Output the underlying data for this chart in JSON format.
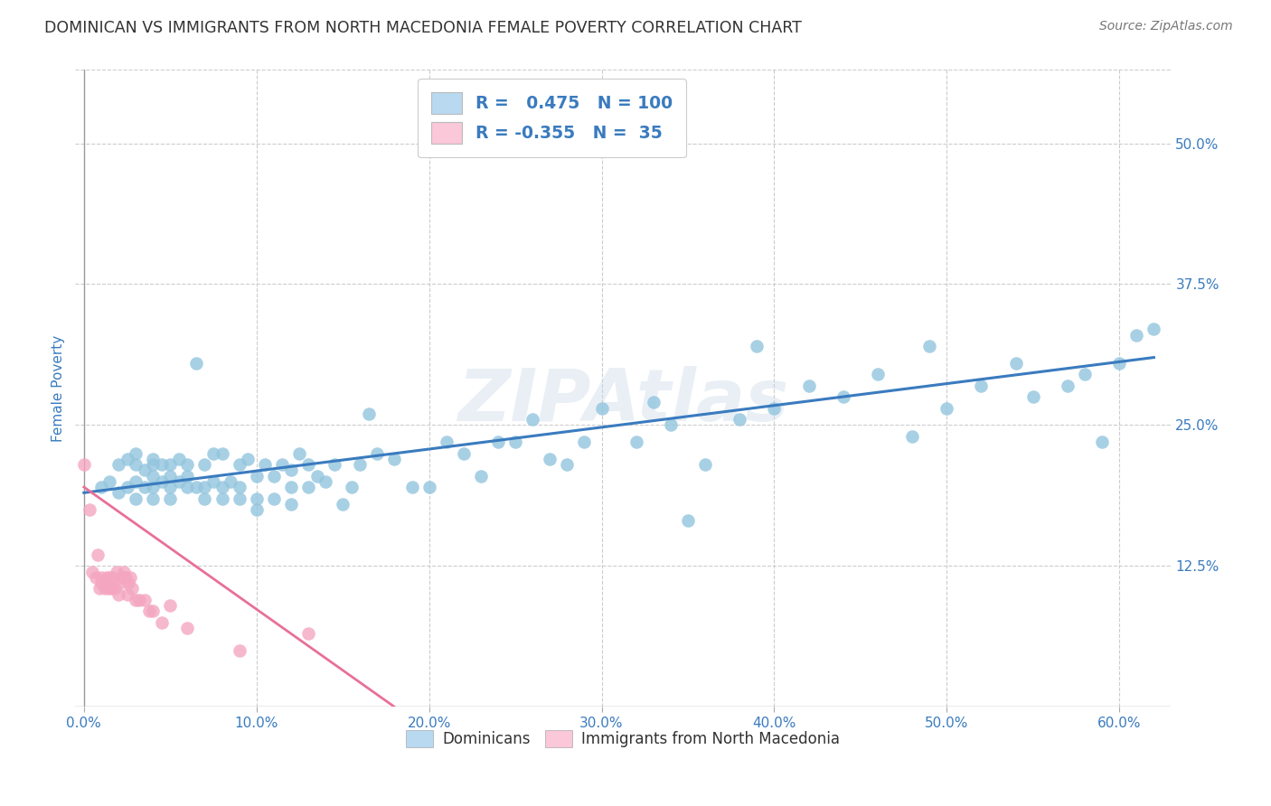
{
  "title": "DOMINICAN VS IMMIGRANTS FROM NORTH MACEDONIA FEMALE POVERTY CORRELATION CHART",
  "source": "Source: ZipAtlas.com",
  "xlabel_tick_vals": [
    0.0,
    0.1,
    0.2,
    0.3,
    0.4,
    0.5,
    0.6
  ],
  "ylabel": "Female Poverty",
  "ylabel_ticks_right": [
    "50.0%",
    "37.5%",
    "25.0%",
    "12.5%"
  ],
  "ylabel_tick_vals": [
    0.5,
    0.375,
    0.25,
    0.125
  ],
  "ylim": [
    0.0,
    0.565
  ],
  "xlim": [
    -0.005,
    0.63
  ],
  "blue_R": 0.475,
  "blue_N": 100,
  "pink_R": -0.355,
  "pink_N": 35,
  "blue_color": "#92c5de",
  "pink_color": "#f4a6c0",
  "blue_line_color": "#3a7bbf",
  "pink_line_color": "#e87098",
  "legend_blue_face": "#b8d9f0",
  "legend_pink_face": "#fac8d8",
  "watermark": "ZIPAtlas",
  "legend_text_color": "#3a7bbf",
  "blue_scatter_x": [
    0.01,
    0.015,
    0.02,
    0.02,
    0.025,
    0.025,
    0.03,
    0.03,
    0.03,
    0.03,
    0.035,
    0.035,
    0.04,
    0.04,
    0.04,
    0.04,
    0.04,
    0.045,
    0.045,
    0.05,
    0.05,
    0.05,
    0.05,
    0.055,
    0.055,
    0.06,
    0.06,
    0.06,
    0.065,
    0.065,
    0.07,
    0.07,
    0.07,
    0.075,
    0.075,
    0.08,
    0.08,
    0.08,
    0.085,
    0.09,
    0.09,
    0.09,
    0.095,
    0.1,
    0.1,
    0.1,
    0.105,
    0.11,
    0.11,
    0.115,
    0.12,
    0.12,
    0.12,
    0.125,
    0.13,
    0.13,
    0.135,
    0.14,
    0.145,
    0.15,
    0.155,
    0.16,
    0.165,
    0.17,
    0.18,
    0.19,
    0.2,
    0.21,
    0.22,
    0.23,
    0.24,
    0.25,
    0.26,
    0.27,
    0.28,
    0.29,
    0.3,
    0.32,
    0.33,
    0.34,
    0.35,
    0.36,
    0.38,
    0.39,
    0.4,
    0.42,
    0.44,
    0.46,
    0.48,
    0.49,
    0.5,
    0.52,
    0.54,
    0.55,
    0.57,
    0.58,
    0.59,
    0.6,
    0.61,
    0.62
  ],
  "blue_scatter_y": [
    0.195,
    0.2,
    0.19,
    0.215,
    0.195,
    0.22,
    0.185,
    0.2,
    0.215,
    0.225,
    0.195,
    0.21,
    0.185,
    0.195,
    0.205,
    0.215,
    0.22,
    0.2,
    0.215,
    0.185,
    0.195,
    0.205,
    0.215,
    0.2,
    0.22,
    0.195,
    0.205,
    0.215,
    0.195,
    0.305,
    0.185,
    0.195,
    0.215,
    0.2,
    0.225,
    0.185,
    0.195,
    0.225,
    0.2,
    0.185,
    0.195,
    0.215,
    0.22,
    0.175,
    0.185,
    0.205,
    0.215,
    0.185,
    0.205,
    0.215,
    0.18,
    0.195,
    0.21,
    0.225,
    0.195,
    0.215,
    0.205,
    0.2,
    0.215,
    0.18,
    0.195,
    0.215,
    0.26,
    0.225,
    0.22,
    0.195,
    0.195,
    0.235,
    0.225,
    0.205,
    0.235,
    0.235,
    0.255,
    0.22,
    0.215,
    0.235,
    0.265,
    0.235,
    0.27,
    0.25,
    0.165,
    0.215,
    0.255,
    0.32,
    0.265,
    0.285,
    0.275,
    0.295,
    0.24,
    0.32,
    0.265,
    0.285,
    0.305,
    0.275,
    0.285,
    0.295,
    0.235,
    0.305,
    0.33,
    0.335
  ],
  "pink_scatter_x": [
    0.0,
    0.003,
    0.005,
    0.007,
    0.008,
    0.009,
    0.01,
    0.01,
    0.012,
    0.013,
    0.014,
    0.015,
    0.016,
    0.017,
    0.018,
    0.019,
    0.02,
    0.021,
    0.022,
    0.023,
    0.024,
    0.025,
    0.026,
    0.027,
    0.028,
    0.03,
    0.032,
    0.035,
    0.038,
    0.04,
    0.045,
    0.05,
    0.06,
    0.09,
    0.13
  ],
  "pink_scatter_y": [
    0.215,
    0.175,
    0.12,
    0.115,
    0.135,
    0.105,
    0.11,
    0.115,
    0.105,
    0.115,
    0.105,
    0.115,
    0.105,
    0.115,
    0.105,
    0.12,
    0.1,
    0.11,
    0.115,
    0.12,
    0.115,
    0.1,
    0.11,
    0.115,
    0.105,
    0.095,
    0.095,
    0.095,
    0.085,
    0.085,
    0.075,
    0.09,
    0.07,
    0.05,
    0.065
  ],
  "blue_line_x": [
    0.0,
    0.62
  ],
  "blue_line_y": [
    0.19,
    0.31
  ],
  "pink_line_x": [
    0.0,
    0.18
  ],
  "pink_line_y": [
    0.195,
    0.0
  ],
  "background_color": "#ffffff",
  "grid_color": "#cccccc",
  "title_color": "#333333",
  "source_color": "#777777",
  "axis_label_color": "#3a7bbf",
  "legend_label_blue": "Dominicans",
  "legend_label_pink": "Immigrants from North Macedonia"
}
